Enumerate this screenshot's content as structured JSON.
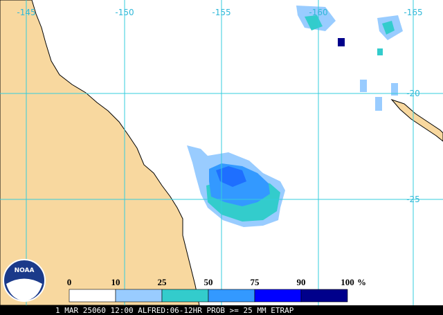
{
  "map": {
    "lon_labels": [
      "-145",
      "-150",
      "-155",
      "-160",
      "-165"
    ],
    "lat_labels": [
      "-20",
      "-25"
    ],
    "legend": {
      "ticks": [
        0,
        10,
        25,
        50,
        75,
        90,
        100
      ],
      "unit": "%",
      "colors": [
        "#ffffff",
        "#99ccff",
        "#33cccc",
        "#3399ff",
        "#0000ff",
        "#00008b"
      ]
    },
    "logo": "NOAA",
    "footer": "1 MAR 25060 12:00 ALFRED:06-12HR PROB >= 25 MM ETRAP"
  }
}
